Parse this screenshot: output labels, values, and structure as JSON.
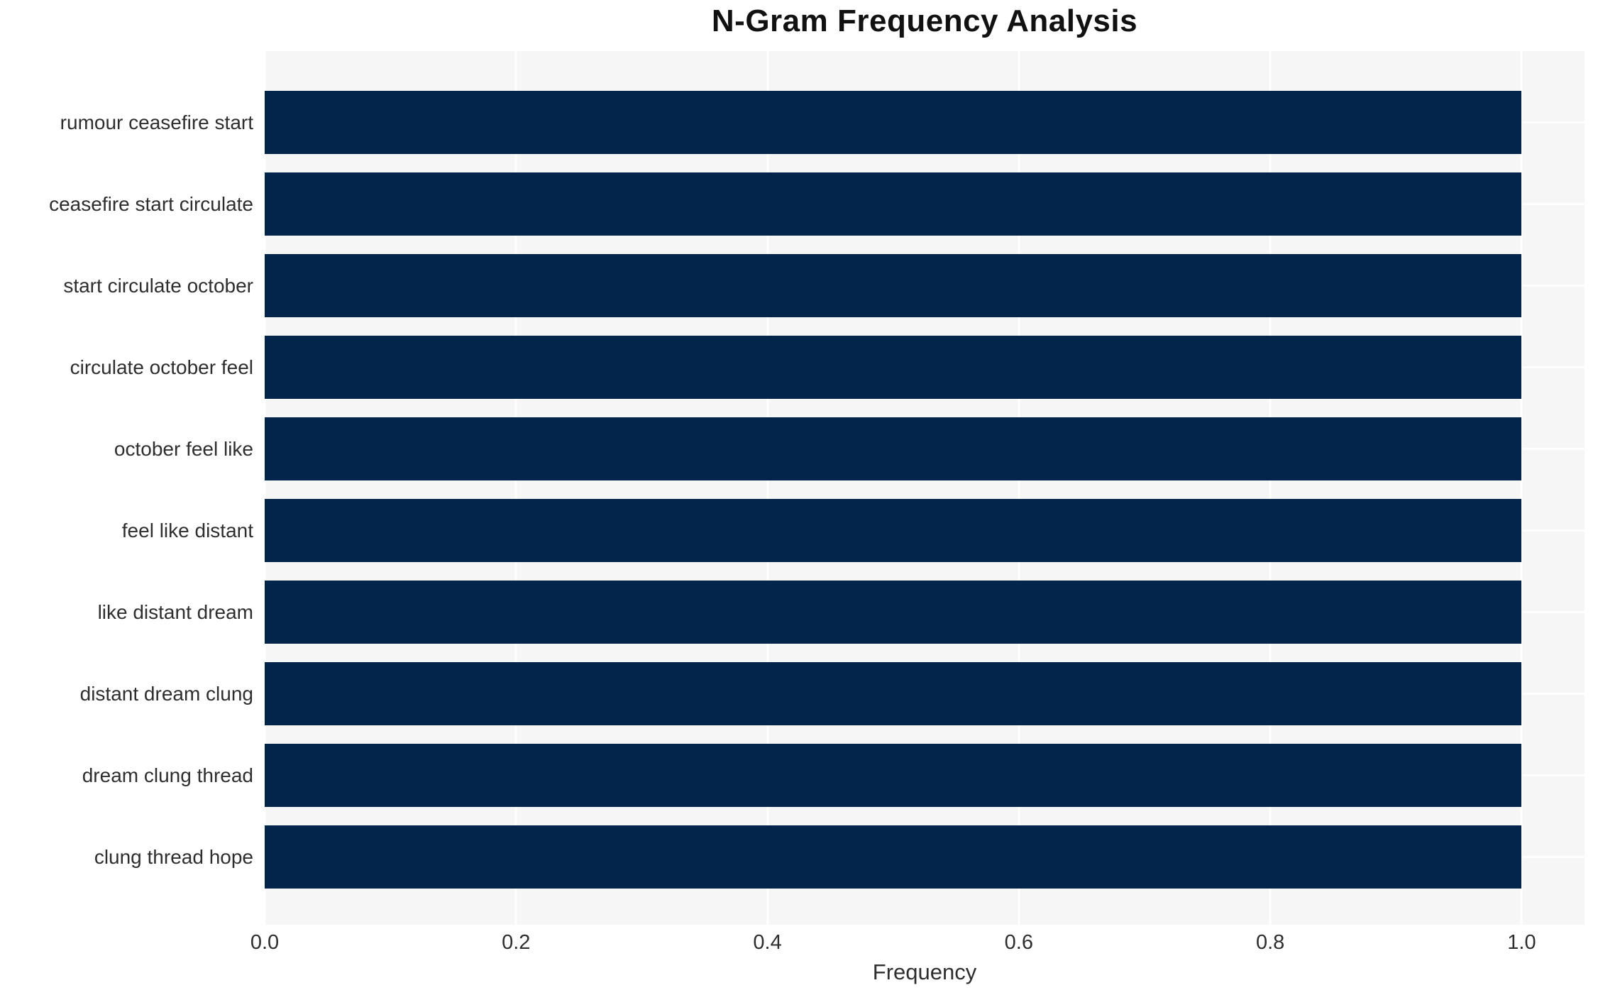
{
  "title": "N-Gram Frequency Analysis",
  "chart_data": {
    "type": "bar",
    "orientation": "horizontal",
    "title": "N-Gram Frequency Analysis",
    "xlabel": "Frequency",
    "ylabel": "",
    "categories": [
      "rumour ceasefire start",
      "ceasefire start circulate",
      "start circulate october",
      "circulate october feel",
      "october feel like",
      "feel like distant",
      "like distant dream",
      "distant dream clung",
      "dream clung thread",
      "clung thread hope"
    ],
    "values": [
      1.0,
      1.0,
      1.0,
      1.0,
      1.0,
      1.0,
      1.0,
      1.0,
      1.0,
      1.0
    ],
    "xlim": [
      0,
      1.05
    ],
    "xticks": [
      "0.0",
      "0.2",
      "0.4",
      "0.6",
      "0.8",
      "1.0"
    ],
    "xtick_values": [
      0.0,
      0.2,
      0.4,
      0.6,
      0.8,
      1.0
    ],
    "grid": true,
    "legend": false,
    "colors": {
      "bar": "#03254c",
      "plot_background": "#f6f6f6",
      "gridline": "#ffffff",
      "title_text": "#111111",
      "label_text": "#2e2e2e"
    }
  }
}
